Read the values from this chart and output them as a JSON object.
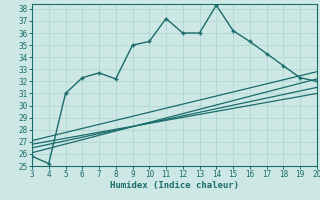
{
  "xlabel": "Humidex (Indice chaleur)",
  "bg_color": "#cde8e4",
  "line_color": "#1a6b6b",
  "grid_color": "#b0d8d4",
  "xlim": [
    3,
    20
  ],
  "ylim": [
    25,
    38.4
  ],
  "xticks": [
    3,
    4,
    5,
    6,
    7,
    8,
    9,
    10,
    11,
    12,
    13,
    14,
    15,
    16,
    17,
    18,
    19,
    20
  ],
  "yticks": [
    25,
    26,
    27,
    28,
    29,
    30,
    31,
    32,
    33,
    34,
    35,
    36,
    37,
    38
  ],
  "main_x": [
    3,
    4,
    5,
    6,
    7,
    8,
    9,
    10,
    11,
    12,
    13,
    14,
    15,
    16,
    17,
    18,
    19,
    20
  ],
  "main_y": [
    25.8,
    25.2,
    31.0,
    32.3,
    32.7,
    32.2,
    35.0,
    35.3,
    37.2,
    36.0,
    36.0,
    38.3,
    36.2,
    35.3,
    34.3,
    33.3,
    32.3,
    32.0
  ],
  "ref_lines": [
    {
      "x": [
        3,
        20
      ],
      "y": [
        26.1,
        32.2
      ]
    },
    {
      "x": [
        3,
        20
      ],
      "y": [
        26.5,
        31.5
      ]
    },
    {
      "x": [
        3,
        20
      ],
      "y": [
        26.8,
        31.0
      ]
    },
    {
      "x": [
        3,
        20
      ],
      "y": [
        27.1,
        32.8
      ]
    }
  ]
}
